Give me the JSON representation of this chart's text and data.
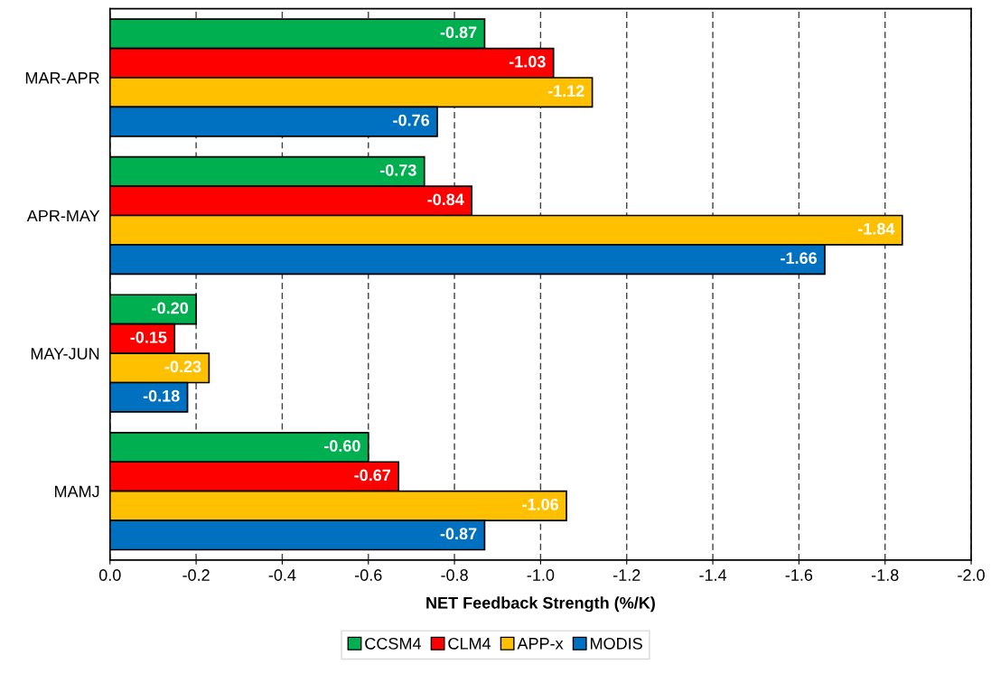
{
  "chart_data": {
    "type": "bar",
    "orientation": "horizontal",
    "xlabel": "NET Feedback Strength (%/K)",
    "categories": [
      "MAR-APR",
      "APR-MAY",
      "MAY-JUN",
      "MAMJ"
    ],
    "series": [
      {
        "name": "CCSM4",
        "color": "#00b050",
        "values": [
          -0.87,
          -0.73,
          -0.2,
          -0.6
        ],
        "value_labels": [
          "-0.87",
          "-0.73",
          "-0.20",
          "-0.60"
        ]
      },
      {
        "name": "CLM4",
        "color": "#ff0000",
        "values": [
          -1.03,
          -0.84,
          -0.15,
          -0.67
        ],
        "value_labels": [
          "-1.03",
          "-0.84",
          "-0.15",
          "-0.67"
        ]
      },
      {
        "name": "APP-x",
        "color": "#ffc000",
        "values": [
          -1.12,
          -1.84,
          -0.23,
          -1.06
        ],
        "value_labels": [
          "-1.12",
          "-1.84",
          "-0.23",
          "-1.06"
        ]
      },
      {
        "name": "MODIS",
        "color": "#0070c0",
        "values": [
          -0.76,
          -1.66,
          -0.18,
          -0.87
        ],
        "value_labels": [
          "-0.76",
          "-1.66",
          "-0.18",
          "-0.87"
        ]
      }
    ],
    "xlim": [
      0.0,
      -2.0
    ],
    "xticks": [
      {
        "value": 0.0,
        "label": "0.0"
      },
      {
        "value": -0.2,
        "label": "-0.2"
      },
      {
        "value": -0.4,
        "label": "-0.4"
      },
      {
        "value": -0.6,
        "label": "-0.6"
      },
      {
        "value": -0.8,
        "label": "-0.8"
      },
      {
        "value": -1.0,
        "label": "-1.0"
      },
      {
        "value": -1.2,
        "label": "-1.2"
      },
      {
        "value": -1.4,
        "label": "-1.4"
      },
      {
        "value": -1.6,
        "label": "-1.6"
      },
      {
        "value": -1.8,
        "label": "-1.8"
      },
      {
        "value": -2.0,
        "label": "-2.0"
      }
    ],
    "grid": "x",
    "legend": "bottom"
  }
}
